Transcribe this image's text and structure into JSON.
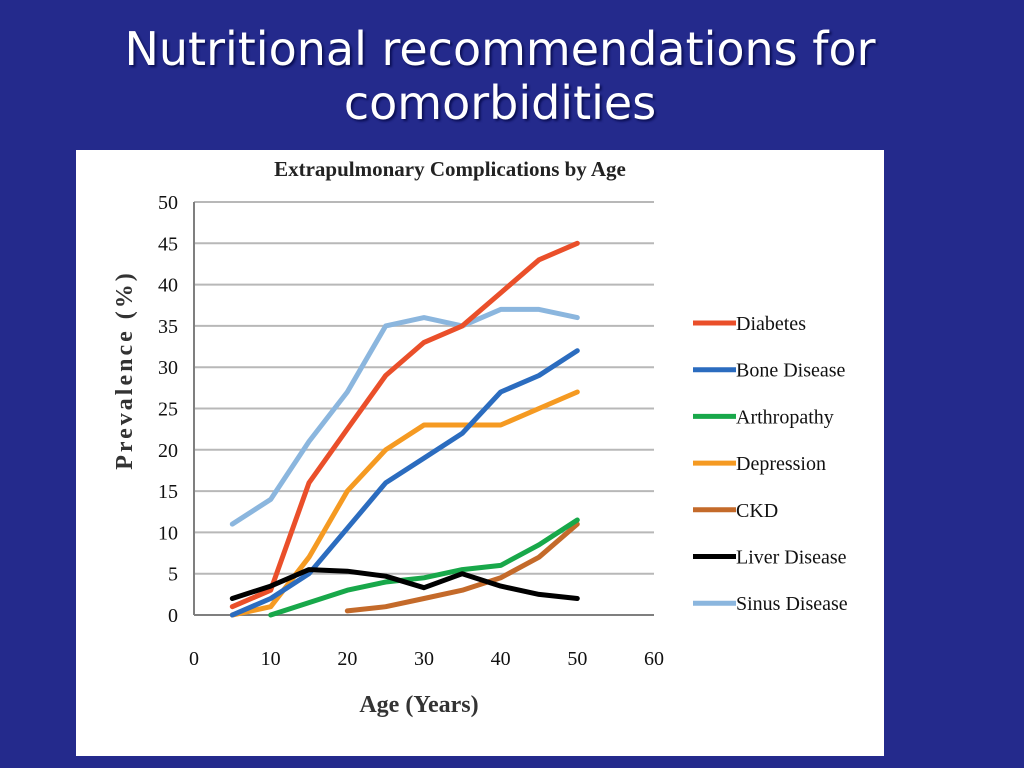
{
  "slide": {
    "title_line1": "Nutritional recommendations for",
    "title_line2": "comorbidities"
  },
  "chart_data": {
    "type": "line",
    "title": "Extrapulmonary Complications by Age",
    "xlabel": "Age (Years)",
    "ylabel": "Prevalence (%)",
    "xlim": [
      0,
      60
    ],
    "ylim": [
      0,
      50
    ],
    "xticks": [
      0,
      10,
      20,
      30,
      40,
      50,
      60
    ],
    "yticks": [
      0,
      5,
      10,
      15,
      20,
      25,
      30,
      35,
      40,
      45,
      50
    ],
    "grid": "horizontal",
    "legend_position": "right",
    "series": [
      {
        "name": "Diabetes",
        "color": "#ea4f2a",
        "x": [
          5,
          10,
          15,
          20,
          25,
          30,
          35,
          40,
          45,
          50
        ],
        "y": [
          1,
          3,
          16,
          22.5,
          29,
          33,
          35,
          39,
          43,
          45
        ]
      },
      {
        "name": "Bone Disease",
        "color": "#2b6cbf",
        "x": [
          5,
          10,
          15,
          20,
          25,
          30,
          35,
          40,
          45,
          50
        ],
        "y": [
          0,
          2,
          5,
          10.5,
          16,
          19,
          22,
          27,
          29,
          32
        ]
      },
      {
        "name": "Arthropathy",
        "color": "#18a84a",
        "x": [
          10,
          15,
          20,
          25,
          30,
          35,
          40,
          45,
          50
        ],
        "y": [
          0,
          1.5,
          3,
          4,
          4.5,
          5.5,
          6,
          8.5,
          11.5
        ]
      },
      {
        "name": "Depression",
        "color": "#f59a22",
        "x": [
          5,
          10,
          15,
          20,
          25,
          30,
          35,
          40,
          45,
          50
        ],
        "y": [
          0,
          1,
          7,
          15,
          20,
          23,
          23,
          23,
          25,
          27
        ]
      },
      {
        "name": "CKD",
        "color": "#c46a2a",
        "x": [
          20,
          25,
          30,
          35,
          40,
          45,
          50
        ],
        "y": [
          0.5,
          1,
          2,
          3,
          4.5,
          7,
          11
        ]
      },
      {
        "name": "Liver Disease",
        "color": "#000000",
        "x": [
          5,
          10,
          15,
          20,
          25,
          30,
          35,
          40,
          45,
          50
        ],
        "y": [
          2,
          3.5,
          5.5,
          5.3,
          4.7,
          3.3,
          5,
          3.5,
          2.5,
          2
        ]
      },
      {
        "name": "Sinus Disease",
        "color": "#8bb6de",
        "x": [
          5,
          10,
          15,
          20,
          25,
          30,
          35,
          40,
          45,
          50
        ],
        "y": [
          11,
          14,
          21,
          27,
          35,
          36,
          35,
          37,
          37,
          36
        ]
      }
    ]
  }
}
